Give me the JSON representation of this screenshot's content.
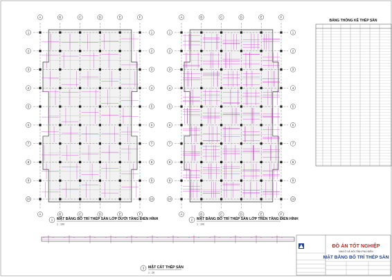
{
  "plans": [
    {
      "number": "1",
      "title": "MẶT BẰNG BỐ TRÍ THÉP SÀN LỚP DƯỚI TẦNG ĐIỂN HÌNH",
      "scale": "1 : 100",
      "grid_cols": [
        "A",
        "B",
        "C",
        "D",
        "E",
        "F"
      ],
      "grid_rows": [
        "1",
        "2",
        "3",
        "4",
        "5",
        "6",
        "7",
        "8",
        "9",
        "10"
      ]
    },
    {
      "number": "2",
      "title": "MẶT BẰNG BỐ TRÍ THÉP SÀN LỚP TRÊN TẦNG ĐIỂN HÌNH",
      "scale": "1 : 100",
      "grid_cols": [
        "A",
        "B",
        "C",
        "D",
        "E",
        "F"
      ],
      "grid_rows": [
        "1",
        "2",
        "3",
        "4",
        "5",
        "6",
        "7",
        "8",
        "9",
        "10"
      ]
    }
  ],
  "section": {
    "number": "3",
    "title": "MẶT CẮT THÉP SÀN",
    "scale": "1 : 20"
  },
  "table": {
    "title": "BẢNG THỐNG KÊ THÉP SÀN"
  },
  "title_block": {
    "project_title": "ĐỒ ÁN TỐT NGHIỆP",
    "project_sub": "NHÀ Ở XÃ HỘI TỈNH PHÚ ĐIỀN",
    "drawing_title": "MẶT BẰNG BỐ TRÍ THÉP SÀN"
  },
  "colors": {
    "line": "#555555",
    "rebar": "#d23cd2",
    "title_red": "#cc2222",
    "title_blue": "#1f3f8f"
  }
}
